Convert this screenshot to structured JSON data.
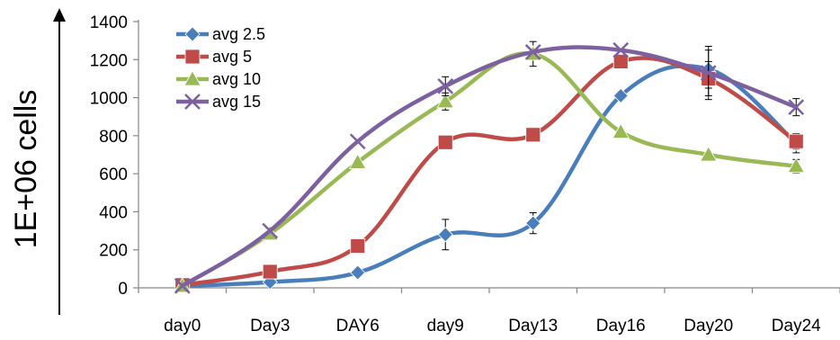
{
  "chart_data": {
    "type": "line",
    "title": "",
    "xlabel": "",
    "ylabel": "1E+06 cells",
    "categories": [
      "day0",
      "Day3",
      "DAY6",
      "day9",
      "Day13",
      "Day16",
      "Day20",
      "Day24"
    ],
    "ylim": [
      0,
      1400
    ],
    "yticks": [
      0,
      200,
      400,
      600,
      800,
      1000,
      1200,
      1400
    ],
    "grid": false,
    "legend_position": "top-left",
    "series": [
      {
        "name": "avg 2.5",
        "color": "#4A7EBB",
        "marker": "diamond",
        "values": [
          10,
          30,
          80,
          280,
          340,
          1010,
          1150,
          760
        ],
        "errors": [
          0,
          0,
          15,
          80,
          55,
          20,
          100,
          50
        ]
      },
      {
        "name": "avg 5",
        "color": "#BE4B48",
        "marker": "square",
        "values": [
          15,
          85,
          220,
          765,
          805,
          1190,
          1100,
          770
        ],
        "errors": [
          0,
          0,
          0,
          0,
          0,
          0,
          90,
          40
        ]
      },
      {
        "name": "avg 10",
        "color": "#98B954",
        "marker": "triangle",
        "values": [
          10,
          285,
          660,
          980,
          1230,
          820,
          700,
          640
        ],
        "errors": [
          0,
          0,
          0,
          45,
          65,
          0,
          0,
          35
        ]
      },
      {
        "name": "avg 15",
        "color": "#7D60A0",
        "marker": "x",
        "values": [
          10,
          300,
          770,
          1060,
          1240,
          1250,
          1130,
          950
        ],
        "errors": [
          0,
          0,
          0,
          50,
          0,
          0,
          140,
          45
        ]
      }
    ]
  }
}
